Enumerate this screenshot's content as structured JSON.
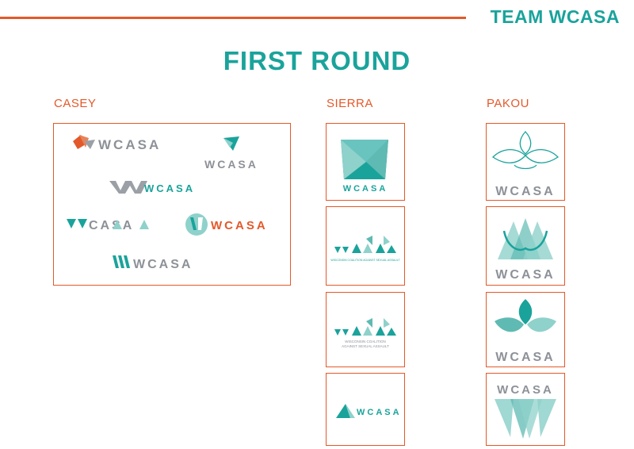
{
  "header": {
    "team_title": "TEAM WCASA",
    "section_title": "FIRST ROUND"
  },
  "columns": {
    "casey": {
      "label": "CASEY"
    },
    "sierra": {
      "label": "SIERRA"
    },
    "pakou": {
      "label": "PAKOU"
    }
  },
  "wordmark": "WCASA",
  "wordmark_vcasa": "CASA",
  "taglines": {
    "sierra_2": "WISCONSIN COALITION AGAINST SEXUAL ASSAULT",
    "sierra_3_line1": "WISCONSIN COALITION",
    "sierra_3_line2": "AGAINST SEXUAL ASSAULT"
  },
  "colors": {
    "accent_orange": "#e3592a",
    "teal": "#1aa39b",
    "light_teal": "#8fd1cb",
    "gray": "#8d9198"
  }
}
